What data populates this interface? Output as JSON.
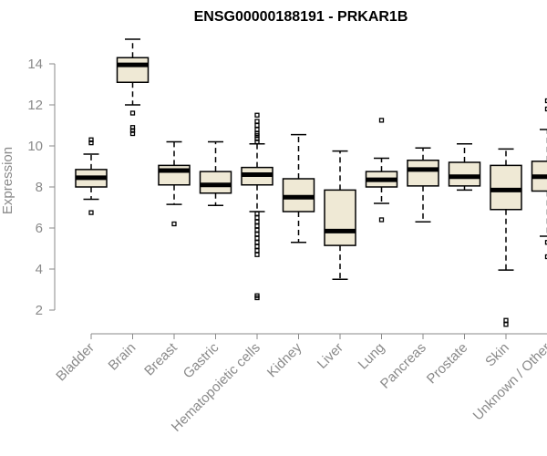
{
  "chart_data": {
    "type": "boxplot",
    "title": "ENSG00000188191 - PRKAR1B",
    "xlabel": "",
    "ylabel": "Expression",
    "ylim": [
      1,
      15.3
    ],
    "yticks": [
      2,
      4,
      6,
      8,
      10,
      12,
      14
    ],
    "categories": [
      "Bladder",
      "Brain",
      "Breast",
      "Gastric",
      "Hematopoietic cells",
      "Kidney",
      "Liver",
      "Lung",
      "Pancreas",
      "Prostate",
      "Skin",
      "Unknown / Other"
    ],
    "series": [
      {
        "name": "Bladder",
        "min": 7.4,
        "q1": 8.0,
        "median": 8.45,
        "q3": 8.85,
        "max": 9.6,
        "outliers": [
          6.75,
          10.15,
          10.3
        ]
      },
      {
        "name": "Brain",
        "min": 12.0,
        "q1": 13.1,
        "median": 13.95,
        "q3": 14.3,
        "max": 15.2,
        "outliers": [
          10.6,
          10.75,
          10.9,
          11.6
        ]
      },
      {
        "name": "Breast",
        "min": 7.15,
        "q1": 8.1,
        "median": 8.8,
        "q3": 9.05,
        "max": 10.2,
        "outliers": [
          6.2
        ]
      },
      {
        "name": "Gastric",
        "min": 7.1,
        "q1": 7.7,
        "median": 8.1,
        "q3": 8.75,
        "max": 10.2,
        "outliers": []
      },
      {
        "name": "Hematopoietic cells",
        "min": 6.8,
        "q1": 8.1,
        "median": 8.6,
        "q3": 8.95,
        "max": 10.1,
        "outliers": [
          11.5,
          11.2,
          11.0,
          10.8,
          10.6,
          10.5,
          10.35,
          10.2,
          6.7,
          6.5,
          6.3,
          6.1,
          5.9,
          5.7,
          5.5,
          5.3,
          5.1,
          4.9,
          4.7,
          2.7,
          2.6
        ]
      },
      {
        "name": "Kidney",
        "min": 5.3,
        "q1": 6.8,
        "median": 7.5,
        "q3": 8.4,
        "max": 10.55,
        "outliers": []
      },
      {
        "name": "Liver",
        "min": 3.5,
        "q1": 5.15,
        "median": 5.85,
        "q3": 7.85,
        "max": 9.75,
        "outliers": []
      },
      {
        "name": "Lung",
        "min": 7.2,
        "q1": 8.0,
        "median": 8.35,
        "q3": 8.75,
        "max": 9.4,
        "outliers": [
          6.4,
          11.25
        ]
      },
      {
        "name": "Pancreas",
        "min": 6.3,
        "q1": 8.05,
        "median": 8.85,
        "q3": 9.3,
        "max": 9.9,
        "outliers": []
      },
      {
        "name": "Prostate",
        "min": 7.85,
        "q1": 8.05,
        "median": 8.5,
        "q3": 9.2,
        "max": 10.1,
        "outliers": []
      },
      {
        "name": "Skin",
        "min": 3.95,
        "q1": 6.9,
        "median": 7.85,
        "q3": 9.05,
        "max": 9.85,
        "outliers": [
          1.3,
          1.5
        ]
      },
      {
        "name": "Unknown / Other",
        "min": 5.6,
        "q1": 7.8,
        "median": 8.5,
        "q3": 9.25,
        "max": 10.8,
        "outliers": [
          4.6,
          5.3,
          11.8,
          12.2
        ]
      }
    ],
    "grid": false,
    "legend": "none"
  }
}
